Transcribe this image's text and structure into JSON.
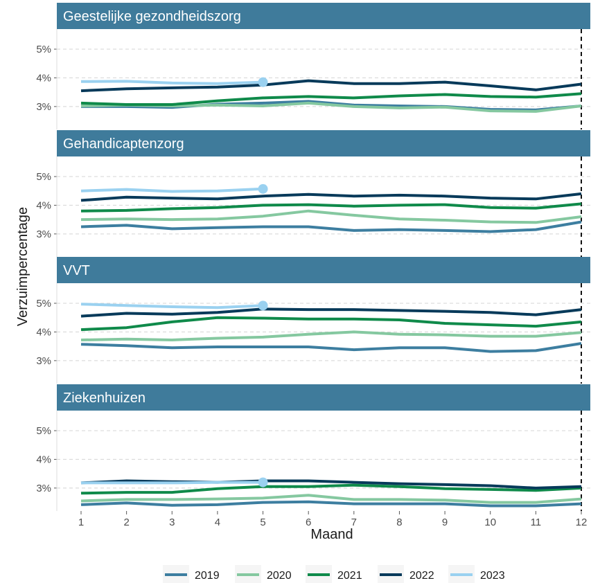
{
  "chart_data": {
    "type": "line",
    "xlabel": "Maand",
    "ylabel": "Verzuimpercentage",
    "x": [
      1,
      2,
      3,
      4,
      5,
      6,
      7,
      8,
      9,
      10,
      11,
      12
    ],
    "x_tick_labels": [
      "1",
      "2",
      "3",
      "4",
      "5",
      "6",
      "7",
      "8",
      "9",
      "10",
      "11",
      "12"
    ],
    "ylim": [
      2.2,
      5.7
    ],
    "y_ticks": [
      3,
      4,
      5
    ],
    "y_tick_labels": [
      "3%",
      "4%",
      "5%"
    ],
    "vline_x": 12,
    "grid": "horizontal dashed",
    "legend_position": "bottom",
    "series_colors": {
      "2019": "#3d7ea0",
      "2020": "#85c8a0",
      "2021": "#0f8a4a",
      "2022": "#073a5a",
      "2023": "#9ad1f0"
    },
    "legend": [
      "2019",
      "2020",
      "2021",
      "2022",
      "2023"
    ],
    "panels": [
      {
        "title": "Geestelijke gezondheidszorg",
        "series": [
          {
            "name": "2019",
            "values": [
              3.0,
              3.0,
              2.97,
              3.08,
              3.12,
              3.18,
              3.05,
              3.02,
              3.0,
              2.9,
              2.88,
              3.02
            ]
          },
          {
            "name": "2020",
            "values": [
              3.02,
              3.05,
              3.02,
              3.05,
              3.02,
              3.12,
              3.0,
              2.95,
              2.98,
              2.85,
              2.83,
              3.02
            ]
          },
          {
            "name": "2021",
            "values": [
              3.12,
              3.07,
              3.07,
              3.2,
              3.3,
              3.35,
              3.3,
              3.37,
              3.42,
              3.35,
              3.33,
              3.45
            ]
          },
          {
            "name": "2022",
            "values": [
              3.55,
              3.62,
              3.65,
              3.68,
              3.75,
              3.9,
              3.8,
              3.8,
              3.85,
              3.72,
              3.58,
              3.78
            ]
          },
          {
            "name": "2023",
            "values": [
              3.87,
              3.88,
              3.82,
              3.8,
              3.85
            ]
          }
        ]
      },
      {
        "title": "Gehandicaptenzorg",
        "series": [
          {
            "name": "2019",
            "values": [
              3.25,
              3.3,
              3.18,
              3.22,
              3.25,
              3.25,
              3.12,
              3.15,
              3.12,
              3.08,
              3.15,
              3.42
            ]
          },
          {
            "name": "2020",
            "values": [
              3.5,
              3.52,
              3.5,
              3.52,
              3.62,
              3.8,
              3.65,
              3.52,
              3.48,
              3.42,
              3.4,
              3.6
            ]
          },
          {
            "name": "2021",
            "values": [
              3.8,
              3.82,
              3.88,
              3.92,
              4.0,
              4.02,
              3.97,
              4.0,
              4.02,
              3.92,
              3.9,
              4.05
            ]
          },
          {
            "name": "2022",
            "values": [
              4.17,
              4.28,
              4.25,
              4.22,
              4.32,
              4.38,
              4.32,
              4.35,
              4.32,
              4.25,
              4.22,
              4.4
            ]
          },
          {
            "name": "2023",
            "values": [
              4.5,
              4.55,
              4.48,
              4.5,
              4.57
            ]
          }
        ]
      },
      {
        "title": "VVT",
        "series": [
          {
            "name": "2019",
            "values": [
              3.57,
              3.52,
              3.45,
              3.48,
              3.48,
              3.48,
              3.38,
              3.45,
              3.45,
              3.32,
              3.35,
              3.6
            ]
          },
          {
            "name": "2020",
            "values": [
              3.72,
              3.75,
              3.72,
              3.78,
              3.82,
              3.92,
              4.0,
              3.92,
              3.9,
              3.85,
              3.85,
              3.98
            ]
          },
          {
            "name": "2021",
            "values": [
              4.08,
              4.15,
              4.35,
              4.5,
              4.48,
              4.45,
              4.45,
              4.42,
              4.3,
              4.25,
              4.2,
              4.35
            ]
          },
          {
            "name": "2022",
            "values": [
              4.55,
              4.65,
              4.62,
              4.68,
              4.8,
              4.78,
              4.78,
              4.75,
              4.72,
              4.68,
              4.6,
              4.78
            ]
          },
          {
            "name": "2023",
            "values": [
              4.97,
              4.92,
              4.88,
              4.85,
              4.92
            ]
          }
        ]
      },
      {
        "title": "Ziekenhuizen",
        "series": [
          {
            "name": "2019",
            "values": [
              2.42,
              2.48,
              2.4,
              2.42,
              2.5,
              2.52,
              2.45,
              2.45,
              2.45,
              2.38,
              2.38,
              2.45
            ]
          },
          {
            "name": "2020",
            "values": [
              2.55,
              2.6,
              2.6,
              2.62,
              2.65,
              2.75,
              2.6,
              2.6,
              2.58,
              2.5,
              2.5,
              2.62
            ]
          },
          {
            "name": "2021",
            "values": [
              2.82,
              2.85,
              2.85,
              2.98,
              3.05,
              3.05,
              3.1,
              3.05,
              2.98,
              2.95,
              2.92,
              3.0
            ]
          },
          {
            "name": "2022",
            "values": [
              3.18,
              3.25,
              3.22,
              3.2,
              3.25,
              3.25,
              3.2,
              3.15,
              3.12,
              3.08,
              3.0,
              3.05
            ]
          },
          {
            "name": "2023",
            "values": [
              3.18,
              3.18,
              3.18,
              3.2,
              3.2
            ]
          }
        ]
      }
    ]
  }
}
